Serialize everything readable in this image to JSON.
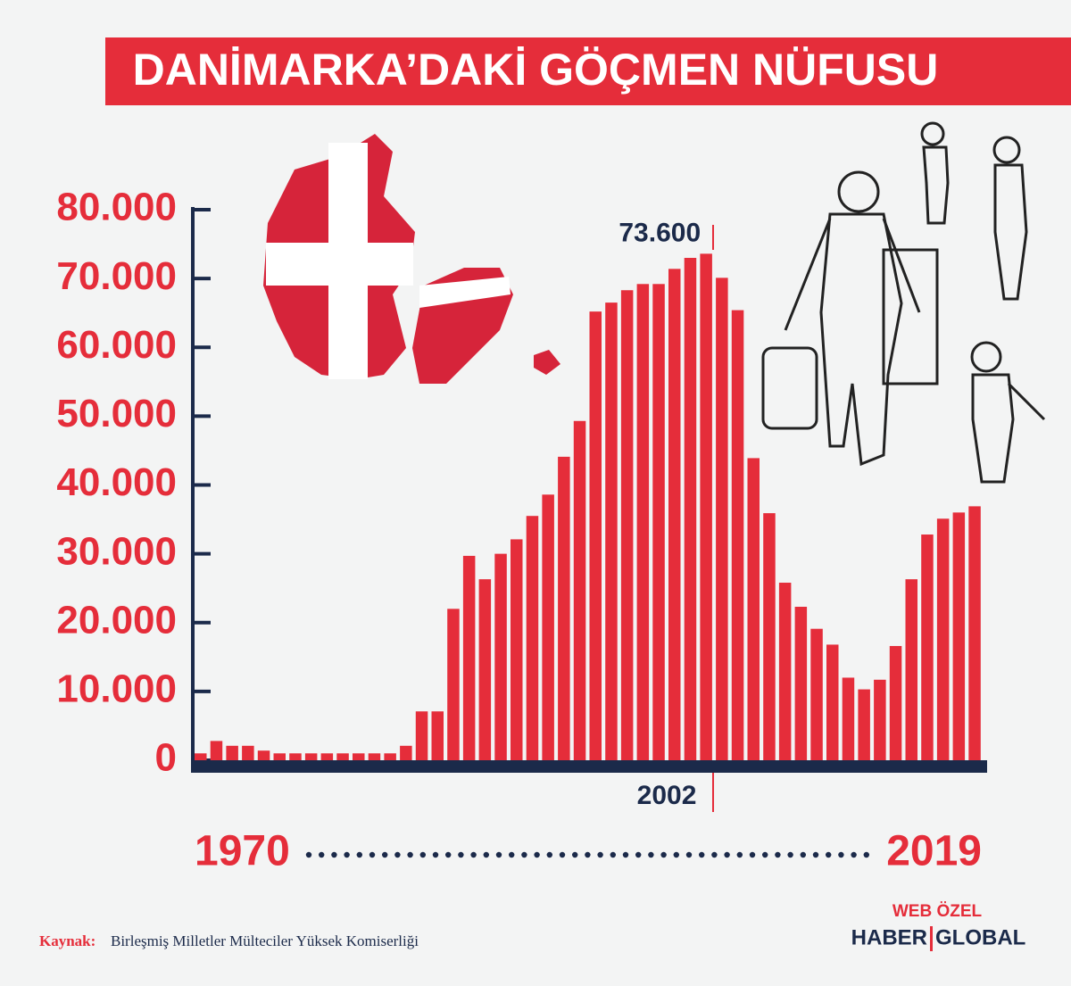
{
  "chart_data": {
    "type": "bar",
    "title": "DANİMARKA’DAKİ GÖÇMEN NÜFUSU",
    "categories": [
      "1970",
      null,
      null,
      null,
      null,
      null,
      null,
      null,
      null,
      null,
      null,
      null,
      null,
      null,
      null,
      null,
      null,
      null,
      null,
      null,
      null,
      null,
      null,
      null,
      null,
      null,
      null,
      null,
      null,
      null,
      null,
      null,
      "2002",
      null,
      null,
      null,
      null,
      null,
      null,
      null,
      null,
      null,
      null,
      null,
      null,
      null,
      null,
      null,
      null,
      "2019"
    ],
    "values": [
      1000,
      2800,
      2100,
      2100,
      1400,
      1000,
      1000,
      1000,
      1000,
      1000,
      1000,
      1000,
      1000,
      2100,
      7100,
      7100,
      22000,
      29700,
      26300,
      30000,
      32100,
      35500,
      38600,
      44100,
      49300,
      65200,
      66500,
      68300,
      69200,
      69200,
      71400,
      73000,
      73600,
      70100,
      65400,
      43900,
      35900,
      25800,
      22300,
      19100,
      16800,
      12000,
      10300,
      11700,
      16600,
      26300,
      32800,
      35100,
      36000,
      36900
    ],
    "value_labels": [
      null,
      null,
      null,
      null,
      null,
      null,
      null,
      null,
      null,
      null,
      null,
      null,
      null,
      null,
      null,
      null,
      null,
      null,
      null,
      null,
      null,
      null,
      null,
      null,
      null,
      null,
      null,
      null,
      null,
      null,
      null,
      null,
      "73.600",
      null,
      null,
      null,
      null,
      null,
      null,
      null,
      null,
      null,
      null,
      null,
      null,
      null,
      null,
      null,
      null,
      null
    ],
    "color": "#e52d3a",
    "ylim": [
      0,
      80000
    ],
    "yticks": [
      0,
      {
        "value": 10000,
        "label": "10.000"
      },
      {
        "value": 20000,
        "label": "20.000"
      },
      {
        "value": 30000,
        "label": "30.000"
      },
      {
        "value": 40000,
        "label": "40.000"
      },
      {
        "value": 50000,
        "label": "50.000"
      },
      {
        "value": 60000,
        "label": "60.000"
      },
      {
        "value": 70000,
        "label": "70.000"
      },
      {
        "value": 80000,
        "label": "80.000"
      }
    ]
  },
  "source": {
    "label": "Kaynak:",
    "text": "Birleşmiş Milletler Mülteciler Yüksek Komiserliği"
  },
  "brand": {
    "tag": "WEB ÖZEL",
    "name1": "HABER",
    "name2": "GLOBAL"
  }
}
